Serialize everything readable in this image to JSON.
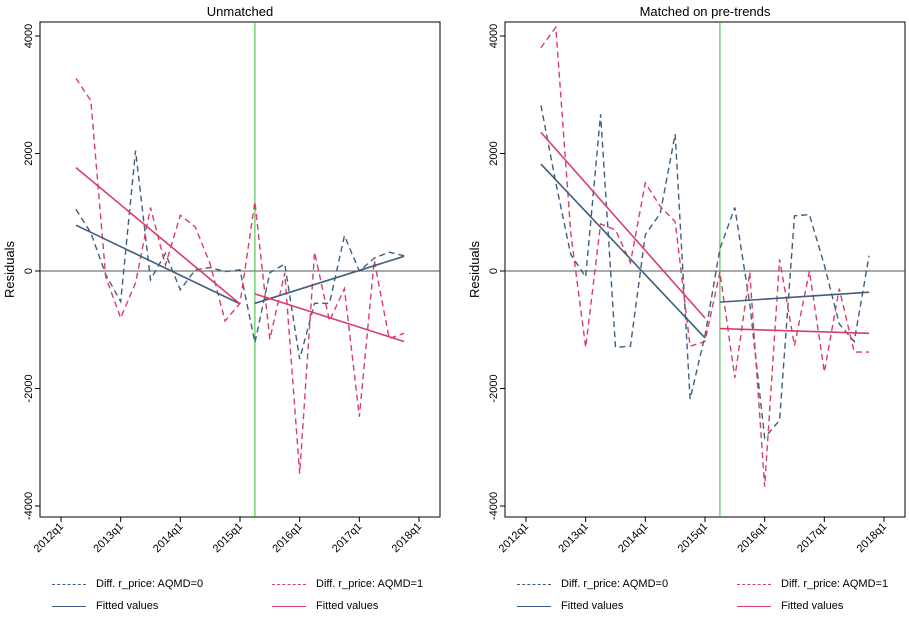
{
  "colors": {
    "aqmd0": "#3e5f7f",
    "aqmd1": "#d93d6a",
    "treatment_line": "#33bb33",
    "zero_line": "#555555",
    "frame": "#000000"
  },
  "legend_labels": {
    "diff0": "Diff. r_price: AQMD=0",
    "diff1": "Diff. r_price: AQMD=1",
    "fit0": "Fitted values",
    "fit1": "Fitted values"
  },
  "chart_data": [
    {
      "type": "line",
      "title": "Unmatched",
      "xlabel": "",
      "ylabel": "Residuals",
      "xlim": [
        "2012q1",
        "2018q1"
      ],
      "ylim": [
        -4000,
        4000
      ],
      "x_ticks": [
        "2012q1",
        "2013q1",
        "2014q1",
        "2015q1",
        "2016q1",
        "2017q1",
        "2018q1"
      ],
      "y_ticks": [
        -4000,
        -2000,
        0,
        2000,
        4000
      ],
      "grid": false,
      "vline": "2015q2",
      "hline": 0,
      "series": [
        {
          "name": "Diff. r_price: AQMD=0",
          "style": "dashed",
          "color": "#3e5f7f",
          "x": [
            "2012q2",
            "2012q3",
            "2012q4",
            "2013q1",
            "2013q2",
            "2013q3",
            "2013q4",
            "2014q1",
            "2014q2",
            "2014q3",
            "2014q4",
            "2015q1",
            "2015q2",
            "2015q3",
            "2015q4",
            "2016q1",
            "2016q2",
            "2016q3",
            "2016q4",
            "2017q1",
            "2017q2",
            "2017q3",
            "2017q4"
          ],
          "y": [
            1050,
            650,
            -60,
            -520,
            2050,
            -150,
            300,
            -320,
            20,
            60,
            -10,
            20,
            -1220,
            -30,
            120,
            -1500,
            -550,
            -550,
            600,
            0,
            220,
            320,
            260
          ]
        },
        {
          "name": "Diff. r_price: AQMD=1",
          "style": "dashed",
          "color": "#d93d6a",
          "x": [
            "2012q2",
            "2012q3",
            "2012q4",
            "2013q1",
            "2013q2",
            "2013q3",
            "2013q4",
            "2014q1",
            "2014q2",
            "2014q3",
            "2014q4",
            "2015q1",
            "2015q2",
            "2015q3",
            "2015q4",
            "2016q1",
            "2016q2",
            "2016q3",
            "2016q4",
            "2017q1",
            "2017q2",
            "2017q3",
            "2017q4"
          ],
          "y": [
            3280,
            2900,
            -100,
            -800,
            -200,
            1080,
            100,
            950,
            750,
            120,
            -850,
            -550,
            1180,
            -1160,
            -30,
            -3450,
            320,
            -850,
            -300,
            -2480,
            180,
            -1150,
            -1060
          ]
        },
        {
          "name": "Fitted values",
          "style": "solid",
          "color": "#3e5f7f",
          "segments": [
            {
              "x": [
                "2012q2",
                "2015q1"
              ],
              "y": [
                780,
                -560
              ]
            },
            {
              "x": [
                "2015q2",
                "2017q4"
              ],
              "y": [
                -550,
                250
              ]
            }
          ]
        },
        {
          "name": "Fitted values",
          "style": "solid",
          "color": "#d93d6a",
          "segments": [
            {
              "x": [
                "2012q2",
                "2015q1"
              ],
              "y": [
                1760,
                -560
              ]
            },
            {
              "x": [
                "2015q2",
                "2017q4"
              ],
              "y": [
                -390,
                -1200
              ]
            }
          ]
        }
      ]
    },
    {
      "type": "line",
      "title": "Matched on pre-trends",
      "xlabel": "",
      "ylabel": "Residuals",
      "xlim": [
        "2012q1",
        "2018q1"
      ],
      "ylim": [
        -4000,
        4000
      ],
      "x_ticks": [
        "2012q1",
        "2013q1",
        "2014q1",
        "2015q1",
        "2016q1",
        "2017q1",
        "2018q1"
      ],
      "y_ticks": [
        -4000,
        -2000,
        0,
        2000,
        4000
      ],
      "grid": false,
      "vline": "2015q2",
      "hline": 0,
      "series": [
        {
          "name": "Diff. r_price: AQMD=0",
          "style": "dashed",
          "color": "#3e5f7f",
          "x": [
            "2012q2",
            "2012q3",
            "2012q4",
            "2013q1",
            "2013q2",
            "2013q3",
            "2013q4",
            "2014q1",
            "2014q2",
            "2014q3",
            "2014q4",
            "2015q1",
            "2015q2",
            "2015q3",
            "2015q4",
            "2016q1",
            "2016q2",
            "2016q3",
            "2016q4",
            "2017q1",
            "2017q2",
            "2017q3",
            "2017q4"
          ],
          "y": [
            2820,
            1500,
            280,
            -100,
            2670,
            -1300,
            -1280,
            620,
            980,
            2330,
            -2180,
            -1100,
            380,
            1080,
            -560,
            -2840,
            -2540,
            940,
            960,
            100,
            -900,
            -1200,
            260
          ]
        },
        {
          "name": "Diff. r_price: AQMD=1",
          "style": "dashed",
          "color": "#d93d6a",
          "x": [
            "2012q2",
            "2012q3",
            "2012q4",
            "2013q1",
            "2013q2",
            "2013q3",
            "2013q4",
            "2014q1",
            "2014q2",
            "2014q3",
            "2014q4",
            "2015q1",
            "2015q2",
            "2015q3",
            "2015q4",
            "2016q1",
            "2016q2",
            "2016q3",
            "2016q4",
            "2017q1",
            "2017q2",
            "2017q3",
            "2017q4"
          ],
          "y": [
            3800,
            4150,
            650,
            -1300,
            800,
            700,
            140,
            1500,
            1100,
            840,
            -1280,
            -1200,
            -20,
            -1820,
            -20,
            -3670,
            200,
            -1270,
            0,
            -1720,
            -300,
            -1380,
            -1380
          ]
        },
        {
          "name": "Fitted values",
          "style": "solid",
          "color": "#3e5f7f",
          "segments": [
            {
              "x": [
                "2012q2",
                "2015q1"
              ],
              "y": [
                1820,
                -1140
              ]
            },
            {
              "x": [
                "2015q2",
                "2017q4"
              ],
              "y": [
                -530,
                -360
              ]
            }
          ]
        },
        {
          "name": "Fitted values",
          "style": "solid",
          "color": "#d93d6a",
          "segments": [
            {
              "x": [
                "2012q2",
                "2015q1"
              ],
              "y": [
                2360,
                -800
              ]
            },
            {
              "x": [
                "2015q2",
                "2017q4"
              ],
              "y": [
                -980,
                -1060
              ]
            }
          ]
        }
      ]
    }
  ]
}
